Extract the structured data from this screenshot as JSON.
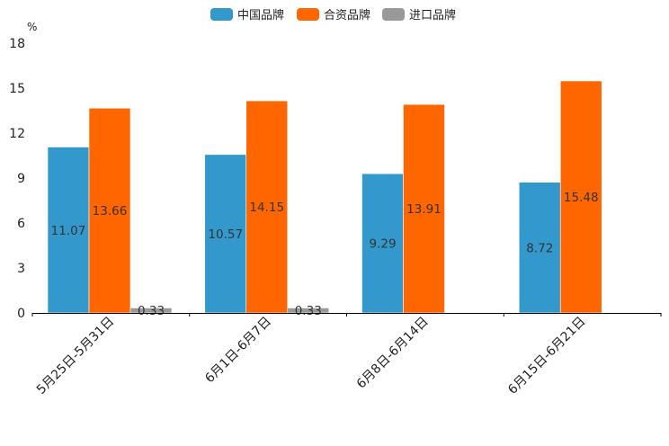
{
  "chart_data": {
    "type": "bar",
    "title": "",
    "unit": "%",
    "xlabel": "",
    "ylabel": "%",
    "ylim": [
      0,
      18
    ],
    "yticks": [
      0,
      3,
      6,
      9,
      12,
      15,
      18
    ],
    "grid": false,
    "legend_position": "top-center",
    "categories": [
      "5月25日-5月31日",
      "6月1日-6月7日",
      "6月8日-6月14日",
      "6月15日-6月21日"
    ],
    "series": [
      {
        "name": "中国品牌",
        "color": "#3399CC",
        "values": [
          11.07,
          10.57,
          9.29,
          8.72
        ],
        "labels": [
          "11.07",
          "10.57",
          "9.29",
          "8.72"
        ]
      },
      {
        "name": "合资品牌",
        "color": "#FF6600",
        "values": [
          13.66,
          14.15,
          13.91,
          15.48
        ],
        "labels": [
          "13.66",
          "14.15",
          "13.91",
          "15.48"
        ]
      },
      {
        "name": "进口品牌",
        "color": "#999999",
        "values": [
          0.33,
          0.33,
          null,
          null
        ],
        "labels": [
          "0.33",
          "0.33",
          null,
          null
        ]
      }
    ]
  }
}
